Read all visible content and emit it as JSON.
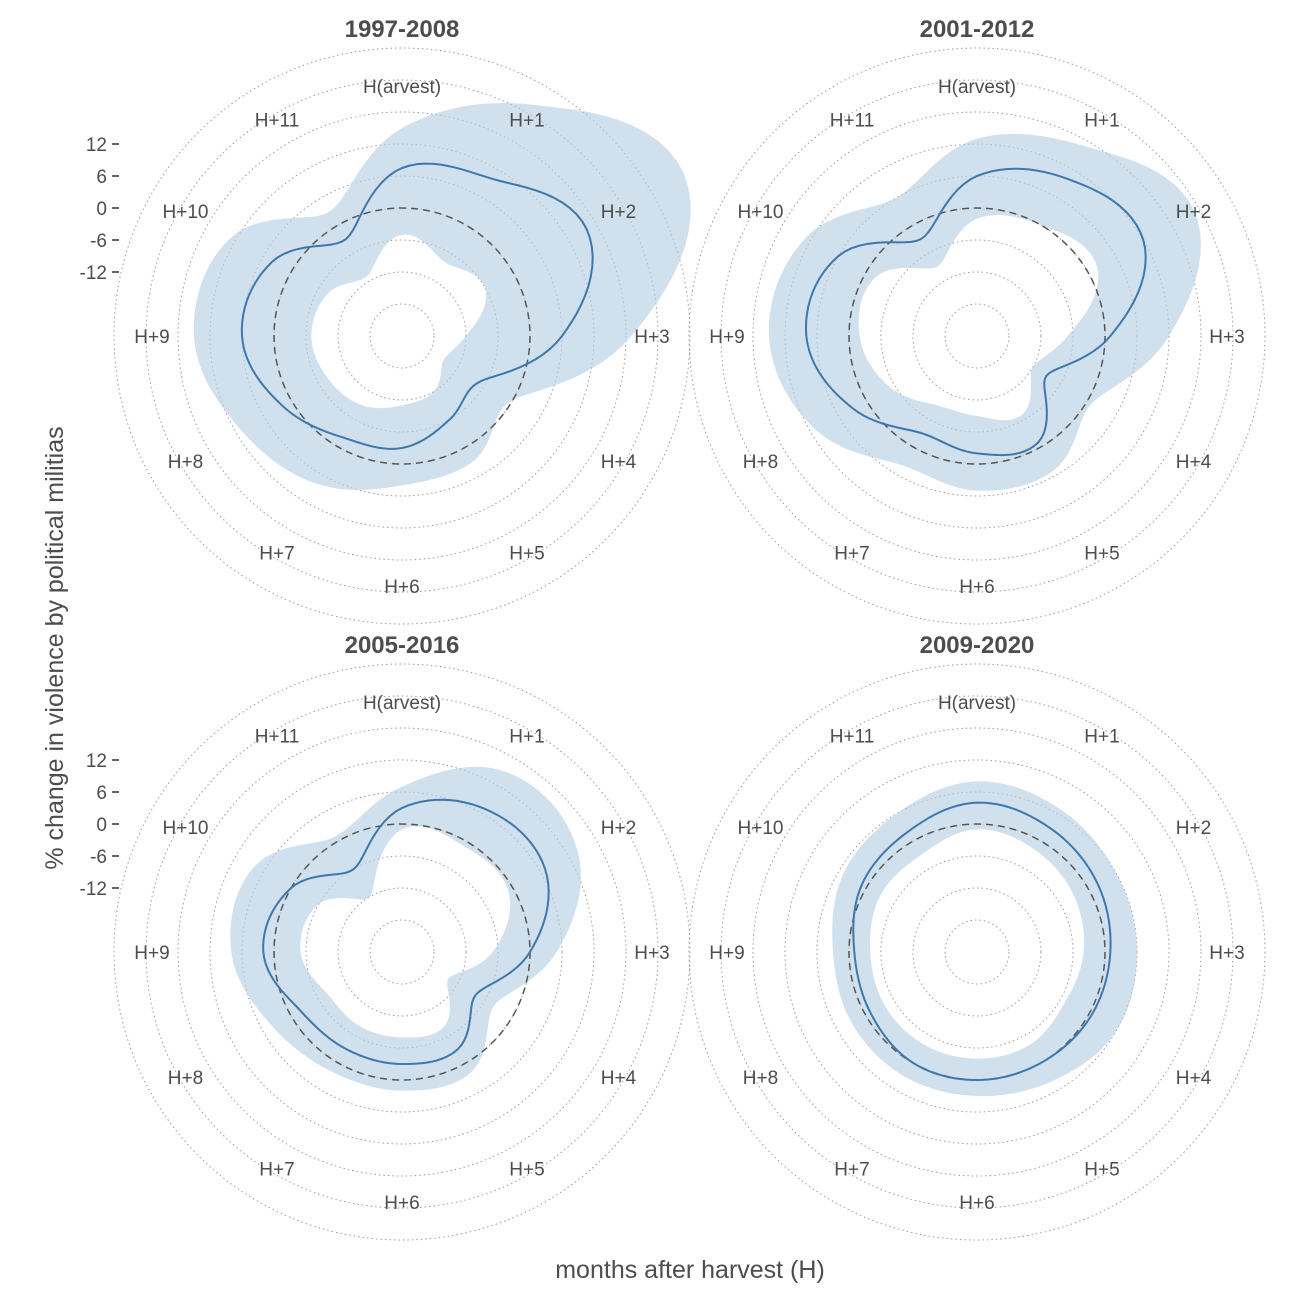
{
  "chart_data": {
    "type": "radar",
    "xlabel": "months after harvest (H)",
    "ylabel": "% change in violence by political militias",
    "spokes": [
      "H(arvest)",
      "H+1",
      "H+2",
      "H+3",
      "H+4",
      "H+5",
      "H+6",
      "H+7",
      "H+8",
      "H+9",
      "H+10",
      "H+11"
    ],
    "r_ticks": [
      12,
      6,
      0,
      -6,
      -12
    ],
    "r_tick_labels": [
      "12",
      "6",
      "0",
      "-6",
      "-12"
    ],
    "r_range": [
      -18,
      30
    ],
    "grid_circles": [
      -18,
      -12,
      -6,
      0,
      6,
      12,
      18,
      24,
      30
    ],
    "colors": {
      "estimate": "#3d78ac",
      "band": "#b9cfe4",
      "reference": "#555555"
    },
    "panels": [
      {
        "title": "1997-2008",
        "estimate": [
          7.5,
          10,
          16,
          6,
          -7,
          -6,
          -3,
          -2,
          2,
          6,
          4,
          -3
        ],
        "upper": [
          15,
          26,
          37,
          19,
          0,
          3,
          4,
          8,
          11,
          15,
          13,
          3
        ],
        "lower": [
          -5,
          -8,
          -6,
          -12,
          -15,
          -12,
          -11,
          -9,
          -8,
          -7,
          -8,
          -11
        ]
      },
      {
        "title": "2001-2012",
        "estimate": [
          6,
          10,
          12,
          1,
          -9,
          -1,
          -2,
          -3,
          3,
          8,
          6,
          -3
        ],
        "upper": [
          13,
          17,
          23,
          12,
          1,
          5,
          5,
          4,
          11,
          15,
          13,
          6
        ],
        "lower": [
          -2,
          0,
          2,
          -7,
          -12,
          -7,
          -9,
          -9,
          -5,
          -2,
          -2,
          -9
        ]
      },
      {
        "title": "2005-2016",
        "estimate": [
          3,
          7,
          7,
          0,
          -8,
          -3,
          -3,
          -3,
          -2,
          2,
          0,
          -6
        ],
        "upper": [
          7,
          15,
          14,
          5,
          -4,
          2,
          2,
          2,
          4,
          8,
          8,
          1
        ],
        "lower": [
          -1,
          -1,
          -1,
          -7,
          -14,
          -8,
          -8,
          -8,
          -8,
          -5,
          -6,
          -12
        ]
      },
      {
        "title": "2009-2020",
        "estimate": [
          4,
          3,
          2,
          1,
          0.5,
          0,
          0,
          0,
          -1,
          -1,
          1,
          2
        ],
        "upper": [
          8,
          7,
          6,
          6,
          6,
          4,
          3,
          3,
          3,
          3,
          5,
          6
        ],
        "lower": [
          -1,
          -2,
          -3,
          -4,
          -5,
          -4,
          -4,
          -4,
          -4,
          -4,
          -3,
          -3
        ]
      }
    ]
  }
}
